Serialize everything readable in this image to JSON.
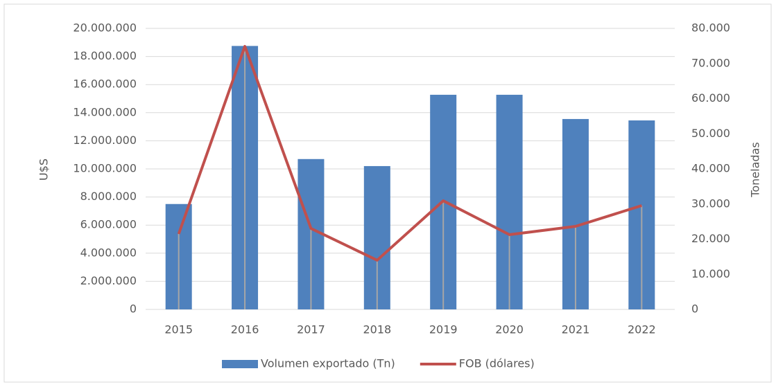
{
  "chart_data": {
    "type": "bar",
    "categories": [
      "2015",
      "2016",
      "2017",
      "2018",
      "2019",
      "2020",
      "2021",
      "2022"
    ],
    "series": [
      {
        "name": "Volumen exportado (Tn)",
        "type": "bar",
        "axis": "y2",
        "color": "#4f81bd",
        "values": [
          30000,
          75000,
          42800,
          40800,
          61100,
          61100,
          54200,
          53800
        ]
      },
      {
        "name": "FOB (dólares)",
        "type": "line",
        "color": "#c0504d",
        "values": [
          5370000,
          18720000,
          5760000,
          3500000,
          7730000,
          5320000,
          5910000,
          7390000
        ]
      }
    ],
    "ylabel": "U$S",
    "y2label": "Toneladas",
    "ylim": [
      0,
      20000000
    ],
    "yticks": [
      0,
      {
        "value": 2000000,
        "label": "2.000.000"
      },
      {
        "value": 4000000,
        "label": "4.000.000"
      },
      {
        "value": 6000000,
        "label": "6.000.000"
      },
      {
        "value": 8000000,
        "label": "8.000.000"
      },
      {
        "value": 10000000,
        "label": "10.000.000"
      },
      {
        "value": 12000000,
        "label": "12.000.000"
      },
      {
        "value": 14000000,
        "label": "14.000.000"
      },
      {
        "value": 16000000,
        "label": "16.000.000"
      },
      {
        "value": 18000000,
        "label": "18.000.000"
      },
      {
        "value": 20000000,
        "label": "20.000.000"
      }
    ],
    "y2lim": [
      0,
      80000
    ],
    "y2ticks": [
      0,
      {
        "value": 10000,
        "label": "10.000"
      },
      {
        "value": 20000,
        "label": "20.000"
      },
      {
        "value": 30000,
        "label": "30.000"
      },
      {
        "value": 40000,
        "label": "40.000"
      },
      {
        "value": 50000,
        "label": "50.000"
      },
      {
        "value": 60000,
        "label": "60.000"
      },
      {
        "value": 70000,
        "label": "70.000"
      },
      {
        "value": 80000,
        "label": "80.000"
      }
    ],
    "grid": true,
    "legend": "bottom"
  }
}
